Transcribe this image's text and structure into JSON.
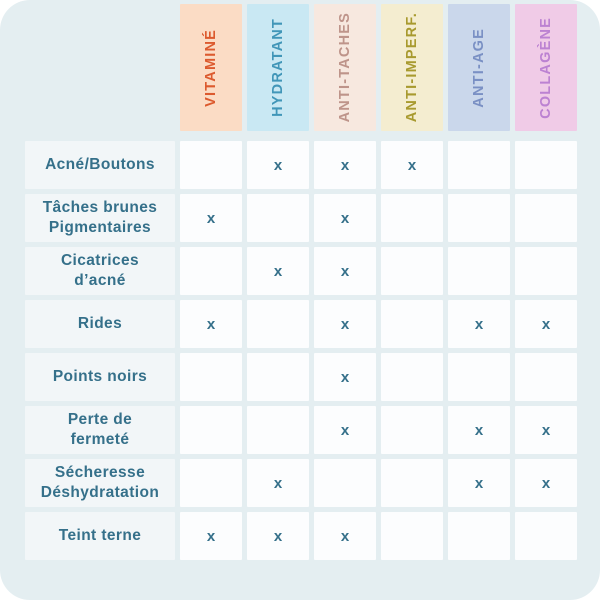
{
  "table": {
    "columns": [
      {
        "label": "VITAMINÉ",
        "bg": "#FBDCC5",
        "color": "#DC5A2E"
      },
      {
        "label": "HYDRATANT",
        "bg": "#C9E8F3",
        "color": "#4196B8"
      },
      {
        "label": "ANTI-TACHES",
        "bg": "#F7E8DF",
        "color": "#BE948A"
      },
      {
        "label": "ANTI-IMPERF.",
        "bg": "#F4EDD0",
        "color": "#A89A2F"
      },
      {
        "label": "ANTI-AGE",
        "bg": "#CAD7EB",
        "color": "#7A90C4"
      },
      {
        "label": "COLLAGÈNE",
        "bg": "#F0CBE7",
        "color": "#BC82D2"
      }
    ],
    "rows": [
      {
        "label": "Acné/Boutons",
        "marks": [
          false,
          true,
          true,
          true,
          false,
          false
        ]
      },
      {
        "label": "Tâches brunes\nPigmentaires",
        "marks": [
          true,
          false,
          true,
          false,
          false,
          false
        ]
      },
      {
        "label": "Cicatrices\nd’acné",
        "marks": [
          false,
          true,
          true,
          false,
          false,
          false
        ]
      },
      {
        "label": "Rides",
        "marks": [
          true,
          false,
          true,
          false,
          true,
          true
        ]
      },
      {
        "label": "Points noirs",
        "marks": [
          false,
          false,
          true,
          false,
          false,
          false
        ]
      },
      {
        "label": "Perte de\nfermeté",
        "marks": [
          false,
          false,
          true,
          false,
          true,
          true
        ]
      },
      {
        "label": "Sécheresse\nDéshydratation",
        "marks": [
          false,
          true,
          false,
          false,
          true,
          true
        ]
      },
      {
        "label": "Teint terne",
        "marks": [
          true,
          true,
          true,
          false,
          false,
          false
        ]
      }
    ],
    "mark_glyph": "x"
  },
  "colors": {
    "panel_bg": "#E4EEF1",
    "label_cell_bg": "#F2F6F8",
    "data_cell_bg": "#FCFDFE",
    "text_teal": "#35708A"
  },
  "chart_data": {
    "type": "table",
    "title": "",
    "columns": [
      "VITAMINÉ",
      "HYDRATANT",
      "ANTI-TACHES",
      "ANTI-IMPERF.",
      "ANTI-AGE",
      "COLLAGÈNE"
    ],
    "row_labels": [
      "Acné/Boutons",
      "Tâches brunes Pigmentaires",
      "Cicatrices d’acné",
      "Rides",
      "Points noirs",
      "Perte de fermeté",
      "Sécheresse Déshydratation",
      "Teint terne"
    ],
    "cells": [
      [
        "",
        "x",
        "x",
        "x",
        "",
        ""
      ],
      [
        "x",
        "",
        "x",
        "",
        "",
        ""
      ],
      [
        "",
        "x",
        "x",
        "",
        "",
        ""
      ],
      [
        "x",
        "",
        "x",
        "",
        "x",
        "x"
      ],
      [
        "",
        "",
        "x",
        "",
        "",
        ""
      ],
      [
        "",
        "",
        "x",
        "",
        "x",
        "x"
      ],
      [
        "",
        "x",
        "",
        "",
        "x",
        "x"
      ],
      [
        "x",
        "x",
        "x",
        "",
        "",
        ""
      ]
    ],
    "legend_position": "none",
    "grid": "gapped-cells"
  }
}
